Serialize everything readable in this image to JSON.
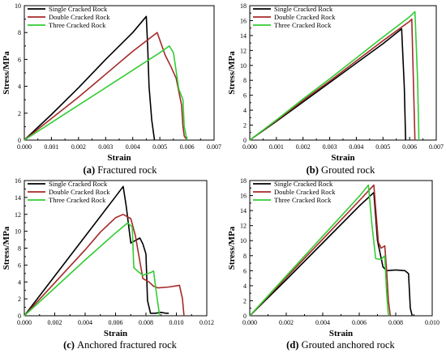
{
  "colors": {
    "single": "#000000",
    "double": "#a52a2a",
    "three": "#33cc33",
    "axis": "#000000"
  },
  "chart_data": [
    {
      "type": "line",
      "id": "a",
      "caption_letter": "(a)",
      "caption_text": " Fractured rock",
      "xlabel": "Strain",
      "ylabel": "Stress/MPa",
      "xlim": [
        0,
        0.007
      ],
      "ylim": [
        0,
        10
      ],
      "xticks": [
        0.0,
        0.001,
        0.002,
        0.003,
        0.004,
        0.005,
        0.006,
        0.007
      ],
      "xtick_labels": [
        "0.000",
        "0.001",
        "0.002",
        "0.003",
        "0.004",
        "0.005",
        "0.006",
        "0.007"
      ],
      "yticks": [
        0,
        2,
        4,
        6,
        8,
        10
      ],
      "ytick_labels": [
        "0",
        "2",
        "4",
        "6",
        "8",
        "10"
      ],
      "legend": "top-left",
      "series": [
        {
          "name": "Single Cracked Rock",
          "color_key": "single",
          "x": [
            0,
            0.001,
            0.002,
            0.003,
            0.004,
            0.0045,
            0.00455,
            0.0046,
            0.0047,
            0.0048
          ],
          "y": [
            0,
            1.9,
            3.9,
            6.0,
            8.0,
            9.2,
            7.0,
            4.0,
            1.5,
            0
          ]
        },
        {
          "name": "Double Cracked Rock",
          "color_key": "double",
          "x": [
            0,
            0.001,
            0.002,
            0.003,
            0.004,
            0.0049,
            0.0052,
            0.0054,
            0.0056,
            0.0058,
            0.00585,
            0.0059,
            0.006
          ],
          "y": [
            0,
            1.6,
            3.2,
            4.9,
            6.6,
            8.0,
            6.3,
            5.5,
            4.6,
            2.6,
            1.0,
            0.3,
            0
          ]
        },
        {
          "name": "Three Cracked Rock",
          "color_key": "three",
          "x": [
            0,
            0.001,
            0.002,
            0.003,
            0.004,
            0.005,
            0.00535,
            0.0055,
            0.0057,
            0.00585,
            0.0059,
            0.00595,
            0.006
          ],
          "y": [
            0,
            1.3,
            2.6,
            3.9,
            5.2,
            6.5,
            7.0,
            6.5,
            3.8,
            3.0,
            1.0,
            0.5,
            0
          ]
        }
      ]
    },
    {
      "type": "line",
      "id": "b",
      "caption_letter": "(b)",
      "caption_text": " Grouted rock",
      "xlabel": "Strain",
      "ylabel": "Stress/MPa",
      "xlim": [
        0,
        0.007
      ],
      "ylim": [
        0,
        18
      ],
      "xticks": [
        0.0,
        0.001,
        0.002,
        0.003,
        0.004,
        0.005,
        0.006,
        0.007
      ],
      "xtick_labels": [
        "0.000",
        "0.001",
        "0.002",
        "0.003",
        "0.004",
        "0.005",
        "0.006",
        "0.007"
      ],
      "yticks": [
        0,
        2,
        4,
        6,
        8,
        10,
        12,
        14,
        16,
        18
      ],
      "ytick_labels": [
        "0",
        "2",
        "4",
        "6",
        "8",
        "10",
        "12",
        "14",
        "16",
        "18"
      ],
      "legend": "top-left",
      "series": [
        {
          "name": "Single Cracked Rock",
          "color_key": "single",
          "x": [
            0,
            0.001,
            0.002,
            0.003,
            0.004,
            0.005,
            0.0057,
            0.0058,
            0.00585
          ],
          "y": [
            0,
            2.5,
            5.1,
            7.7,
            10.3,
            12.9,
            14.9,
            7.0,
            0
          ]
        },
        {
          "name": "Double Cracked Rock",
          "color_key": "double",
          "x": [
            0,
            0.001,
            0.002,
            0.003,
            0.004,
            0.005,
            0.006,
            0.00608,
            0.0062
          ],
          "y": [
            0,
            2.6,
            5.3,
            7.9,
            10.6,
            13.3,
            15.9,
            16.2,
            0
          ]
        },
        {
          "name": "Three Cracked Rock",
          "color_key": "three",
          "x": [
            0,
            0.001,
            0.002,
            0.003,
            0.004,
            0.005,
            0.006,
            0.0062,
            0.0063,
            0.00635
          ],
          "y": [
            0,
            2.7,
            5.5,
            8.2,
            11.0,
            13.8,
            16.5,
            17.2,
            8.0,
            0
          ]
        }
      ]
    },
    {
      "type": "line",
      "id": "c",
      "caption_letter": "(c)",
      "caption_text": " Anchored fractured rock",
      "xlabel": "Strain",
      "ylabel": "Stress/MPa",
      "xlim": [
        0,
        0.012
      ],
      "ylim": [
        0,
        16
      ],
      "xticks": [
        0.0,
        0.002,
        0.004,
        0.006,
        0.008,
        0.01,
        0.012
      ],
      "xtick_labels": [
        "0.000",
        "0.002",
        "0.004",
        "0.006",
        "0.008",
        "0.010",
        "0.012"
      ],
      "yticks": [
        0,
        2,
        4,
        6,
        8,
        10,
        12,
        14,
        16
      ],
      "ytick_labels": [
        "0",
        "2",
        "4",
        "6",
        "8",
        "10",
        "12",
        "14",
        "16"
      ],
      "legend": "top-left",
      "series": [
        {
          "name": "Single Cracked Rock",
          "color_key": "single",
          "x": [
            0,
            0.002,
            0.004,
            0.006,
            0.0065,
            0.0067,
            0.007,
            0.0073,
            0.0076,
            0.0078,
            0.008,
            0.0081,
            0.0083,
            0.0086,
            0.009,
            0.0093,
            0.0095
          ],
          "y": [
            0,
            4.7,
            9.4,
            14.1,
            15.3,
            13.0,
            8.6,
            8.9,
            9.2,
            8.5,
            7.3,
            1.8,
            0.3,
            0.3,
            0.4,
            0.3,
            0.3
          ]
        },
        {
          "name": "Double Cracked Rock",
          "color_key": "double",
          "x": [
            0,
            0.002,
            0.004,
            0.005,
            0.006,
            0.0065,
            0.007,
            0.0073,
            0.0078,
            0.0082,
            0.0085,
            0.0088,
            0.0095,
            0.0102,
            0.0104,
            0.0105
          ],
          "y": [
            0,
            3.9,
            7.8,
            9.9,
            11.6,
            12.0,
            11.5,
            9.5,
            4.4,
            4.0,
            3.5,
            3.3,
            3.4,
            3.6,
            2.0,
            0
          ]
        },
        {
          "name": "Three Cracked Rock",
          "color_key": "three",
          "x": [
            0,
            0.002,
            0.004,
            0.006,
            0.0068,
            0.0071,
            0.0072,
            0.0075,
            0.0078,
            0.0083,
            0.0085,
            0.0087,
            0.0089
          ],
          "y": [
            0,
            3.3,
            6.6,
            9.8,
            11.0,
            10.5,
            5.7,
            5.2,
            4.8,
            5.1,
            5.3,
            2.5,
            0
          ]
        }
      ]
    },
    {
      "type": "line",
      "id": "d",
      "caption_letter": "(d)",
      "caption_text": " Grouted anchored rock",
      "xlabel": "Strain",
      "ylabel": "Stress/MPa",
      "xlim": [
        0,
        0.01
      ],
      "ylim": [
        0,
        18
      ],
      "xticks": [
        0.0,
        0.002,
        0.004,
        0.006,
        0.008,
        0.01
      ],
      "xtick_labels": [
        "0.000",
        "0.002",
        "0.004",
        "0.006",
        "0.008",
        "0.010"
      ],
      "yticks": [
        0,
        2,
        4,
        6,
        8,
        10,
        12,
        14,
        16,
        18
      ],
      "ytick_labels": [
        "0",
        "2",
        "4",
        "6",
        "8",
        "10",
        "12",
        "14",
        "16",
        "18"
      ],
      "legend": "top-left",
      "series": [
        {
          "name": "Single Cracked Rock",
          "color_key": "single",
          "x": [
            0,
            0.002,
            0.004,
            0.006,
            0.0068,
            0.007,
            0.0073,
            0.0075,
            0.008,
            0.0085,
            0.0087,
            0.0088,
            0.0089
          ],
          "y": [
            0,
            4.8,
            9.7,
            14.6,
            16.4,
            10.0,
            6.5,
            6.0,
            6.1,
            6.0,
            5.6,
            1.0,
            0
          ]
        },
        {
          "name": "Double Cracked Rock",
          "color_key": "double",
          "x": [
            0,
            0.002,
            0.004,
            0.006,
            0.0068,
            0.00705,
            0.0072,
            0.0074,
            0.0075,
            0.0076,
            0.0077
          ],
          "y": [
            0,
            5.1,
            10.2,
            15.3,
            17.4,
            9.8,
            9.0,
            9.3,
            6.0,
            2.0,
            0
          ]
        },
        {
          "name": "Three Cracked Rock",
          "color_key": "three",
          "x": [
            0,
            0.002,
            0.004,
            0.006,
            0.0065,
            0.0067,
            0.0069,
            0.0072,
            0.0074,
            0.0075,
            0.0076
          ],
          "y": [
            0,
            5.3,
            10.6,
            15.9,
            17.4,
            12.0,
            7.6,
            7.5,
            8.0,
            3.0,
            0
          ]
        }
      ]
    }
  ]
}
